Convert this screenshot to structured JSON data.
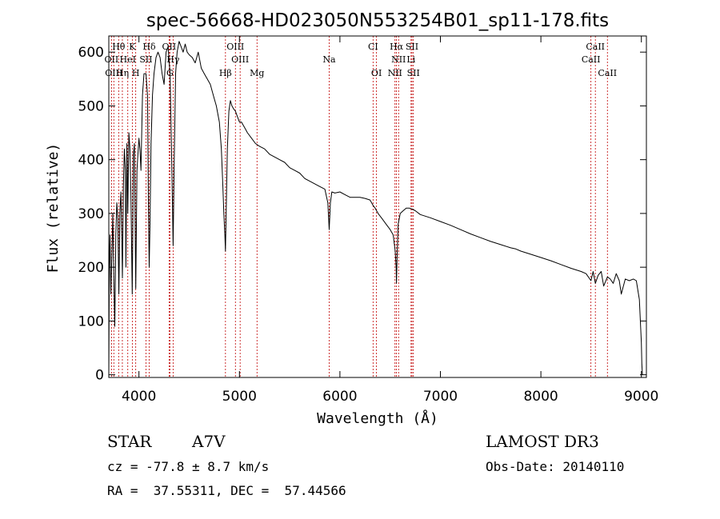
{
  "chart_data": {
    "type": "line",
    "title": "spec-56668-HD023050N553254B01_sp11-178.fits",
    "xlabel": "Wavelength (Å)",
    "ylabel": "Flux (relative)",
    "xlim": [
      3700,
      9050
    ],
    "ylim": [
      -5,
      630
    ],
    "xticks": [
      4000,
      5000,
      6000,
      7000,
      8000,
      9000
    ],
    "yticks": [
      0,
      100,
      200,
      300,
      400,
      500,
      600
    ],
    "grid": false,
    "series": [
      {
        "name": "spectrum",
        "x": [
          3700,
          3705,
          3712,
          3720,
          3730,
          3740,
          3750,
          3760,
          3770,
          3780,
          3790,
          3800,
          3810,
          3820,
          3830,
          3835,
          3845,
          3855,
          3865,
          3870,
          3880,
          3889,
          3900,
          3910,
          3920,
          3933,
          3945,
          3955,
          3968,
          3980,
          3990,
          4000,
          4010,
          4020,
          4035,
          4050,
          4070,
          4085,
          4095,
          4102,
          4110,
          4120,
          4135,
          4150,
          4170,
          4190,
          4210,
          4230,
          4250,
          4270,
          4290,
          4310,
          4330,
          4340,
          4350,
          4365,
          4380,
          4400,
          4420,
          4440,
          4460,
          4480,
          4500,
          4530,
          4560,
          4590,
          4620,
          4650,
          4680,
          4710,
          4740,
          4770,
          4800,
          4820,
          4835,
          4845,
          4855,
          4861,
          4868,
          4880,
          4895,
          4910,
          4925,
          4940,
          4960,
          4980,
          5000,
          5020,
          5050,
          5080,
          5120,
          5160,
          5200,
          5250,
          5300,
          5350,
          5400,
          5450,
          5500,
          5550,
          5600,
          5650,
          5700,
          5750,
          5800,
          5850,
          5880,
          5893,
          5905,
          5920,
          5950,
          6000,
          6050,
          6100,
          6150,
          6200,
          6250,
          6300,
          6330,
          6350,
          6380,
          6420,
          6460,
          6500,
          6530,
          6550,
          6560,
          6563,
          6568,
          6580,
          6600,
          6630,
          6660,
          6690,
          6720,
          6750,
          6800,
          6900,
          7000,
          7100,
          7200,
          7300,
          7400,
          7500,
          7600,
          7700,
          7750,
          7800,
          7900,
          8000,
          8100,
          8200,
          8300,
          8400,
          8450,
          8498,
          8520,
          8542,
          8570,
          8600,
          8625,
          8662,
          8690,
          8720,
          8750,
          8780,
          8800,
          8840,
          8880,
          8920,
          8950,
          8980,
          9000,
          9005,
          9010
        ],
        "y": [
          0,
          200,
          260,
          150,
          220,
          300,
          180,
          90,
          260,
          320,
          290,
          150,
          300,
          340,
          250,
          180,
          350,
          420,
          380,
          200,
          430,
          300,
          450,
          420,
          340,
          150,
          410,
          430,
          160,
          380,
          410,
          440,
          420,
          380,
          520,
          560,
          560,
          520,
          300,
          200,
          280,
          430,
          520,
          560,
          590,
          600,
          590,
          560,
          540,
          600,
          610,
          560,
          360,
          240,
          380,
          560,
          600,
          620,
          610,
          600,
          615,
          600,
          595,
          590,
          580,
          600,
          570,
          560,
          550,
          540,
          520,
          500,
          470,
          420,
          350,
          300,
          260,
          230,
          300,
          420,
          490,
          510,
          500,
          495,
          490,
          480,
          470,
          470,
          460,
          450,
          440,
          430,
          425,
          420,
          410,
          405,
          400,
          395,
          385,
          380,
          375,
          365,
          360,
          355,
          350,
          345,
          320,
          270,
          320,
          340,
          338,
          340,
          335,
          330,
          330,
          330,
          328,
          325,
          315,
          310,
          300,
          290,
          280,
          270,
          260,
          230,
          200,
          170,
          210,
          280,
          300,
          305,
          310,
          310,
          308,
          305,
          298,
          292,
          285,
          278,
          270,
          262,
          255,
          248,
          242,
          236,
          234,
          230,
          224,
          218,
          212,
          205,
          198,
          192,
          188,
          175,
          192,
          170,
          185,
          192,
          165,
          182,
          178,
          170,
          188,
          175,
          150,
          178,
          175,
          178,
          175,
          140,
          60,
          20,
          0
        ]
      }
    ],
    "spectral_lines": [
      {
        "label": "Hθ",
        "x": 3798,
        "row": 0
      },
      {
        "label": "K",
        "x": 3934,
        "row": 0
      },
      {
        "label": "Hδ",
        "x": 4102,
        "row": 0
      },
      {
        "label": "OII",
        "x": 4300,
        "row": 0
      },
      {
        "label": "OIII",
        "x": 4960,
        "row": 0
      },
      {
        "label": "CI",
        "x": 6330,
        "row": 0
      },
      {
        "label": "Hα",
        "x": 6563,
        "row": 0
      },
      {
        "label": "SII",
        "x": 6717,
        "row": 0
      },
      {
        "label": "CaII",
        "x": 8542,
        "row": 0
      },
      {
        "label": "OII",
        "x": 3727,
        "row": 1
      },
      {
        "label": "HeI",
        "x": 3889,
        "row": 1
      },
      {
        "label": "SII",
        "x": 4070,
        "row": 1
      },
      {
        "label": "Hγ",
        "x": 4340,
        "row": 1
      },
      {
        "label": "OIII",
        "x": 5007,
        "row": 1
      },
      {
        "label": "Na",
        "x": 5893,
        "row": 1
      },
      {
        "label": "NII",
        "x": 6584,
        "row": 1
      },
      {
        "label": "Li",
        "x": 6708,
        "row": 1
      },
      {
        "label": "CaII",
        "x": 8498,
        "row": 1
      },
      {
        "label": "OIII",
        "x": 3750,
        "row": 2
      },
      {
        "label": "Hη",
        "x": 3835,
        "row": 2
      },
      {
        "label": "H",
        "x": 3968,
        "row": 2
      },
      {
        "label": "G",
        "x": 4308,
        "row": 2
      },
      {
        "label": "Hβ",
        "x": 4861,
        "row": 2
      },
      {
        "label": "Mg",
        "x": 5175,
        "row": 2
      },
      {
        "label": "OI",
        "x": 6364,
        "row": 2
      },
      {
        "label": "NII",
        "x": 6548,
        "row": 2
      },
      {
        "label": "SII",
        "x": 6731,
        "row": 2
      },
      {
        "label": "CaII",
        "x": 8662,
        "row": 2
      }
    ]
  },
  "info": {
    "object_type": "STAR",
    "subclass": "A7V",
    "survey": "LAMOST DR3",
    "cz": "cz = -77.8 ± 8.7 km/s",
    "obs_date": "Obs-Date: 20140110",
    "coords": "RA =  37.55311, DEC =  57.44566"
  },
  "colors": {
    "line": "#000000",
    "marker": "#c00000",
    "axis": "#000000"
  }
}
